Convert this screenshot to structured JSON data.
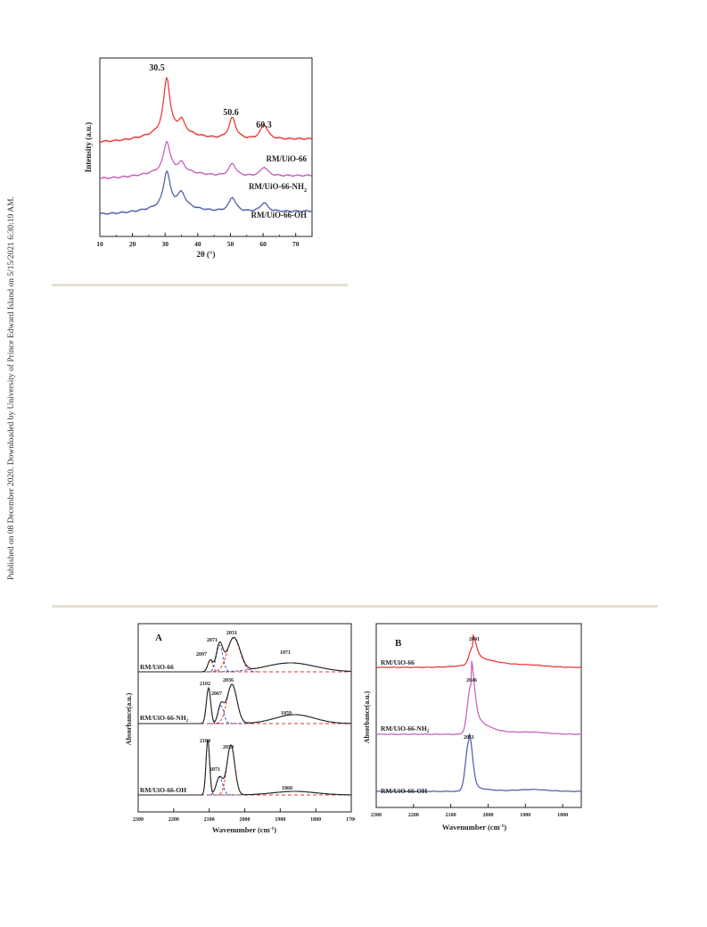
{
  "side_note": "Published on 08 December 2020. Downloaded by University of Prince Edward Island on 5/15/2021 6:30:19 AM.",
  "colors": {
    "red": "#e8312f",
    "pink": "#c45bb8",
    "blue": "#4a5aa8",
    "black": "#222222",
    "rule": "#e5e0cf"
  },
  "xrd": {
    "chart_data": {
      "type": "line",
      "xlabel": "2θ (°)",
      "ylabel": "Intensity (a.u.)",
      "xlim": [
        10,
        75
      ],
      "xticks": [
        "10",
        "20",
        "30",
        "40",
        "50",
        "60",
        "70"
      ],
      "peak_labels": [
        "30.5",
        "50.6",
        "60.3"
      ],
      "series": [
        {
          "name": "RM/UiO-66",
          "color": "#e8312f"
        },
        {
          "name": "RM/UiO-66-NH",
          "subscript": "2",
          "color": "#c45bb8"
        },
        {
          "name": "RM/UiO-66-OH",
          "color": "#4a5aa8"
        }
      ]
    }
  },
  "ir_a": {
    "panel_letter": "A",
    "chart_data": {
      "type": "line",
      "xlabel": "Wavenumber (cm",
      "xlabel_sup": "-1",
      "xlabel_end": ")",
      "ylabel": "Absorbance(a.u.)",
      "xlim": [
        2300,
        1700
      ],
      "xticks": [
        "2300",
        "2200",
        "2100",
        "2000",
        "1900",
        "1800",
        "1700"
      ],
      "series": [
        {
          "name": "RM/UiO-66",
          "peaks": [
            "2097",
            "2071",
            "2031",
            "1871"
          ]
        },
        {
          "name": "RM/UiO-66-NH",
          "subscript": "2",
          "peaks": [
            "2102",
            "2067",
            "2036",
            "1859"
          ]
        },
        {
          "name": "RM/UiO-66-OH",
          "peaks": [
            "2104",
            "2071",
            "2039",
            "1860"
          ]
        }
      ]
    }
  },
  "ir_b": {
    "panel_letter": "B",
    "chart_data": {
      "type": "line",
      "xlabel": "Wavenumber (cm",
      "xlabel_sup": "-1",
      "xlabel_end": ")",
      "ylabel": "Absorbance(a.u.)",
      "xlim": [
        2300,
        1750
      ],
      "xticks": [
        "2300",
        "2200",
        "2100",
        "2000",
        "1900",
        "1800"
      ],
      "series": [
        {
          "name": "RM/UiO-66",
          "peak": "2041",
          "color": "#e8312f"
        },
        {
          "name": "RM/UiO-66-NH",
          "subscript": "2",
          "peak": "2046",
          "color": "#c45bb8"
        },
        {
          "name": "RM/UiO-66-OH",
          "peak": "2051",
          "color": "#4a5aa8"
        }
      ]
    }
  }
}
